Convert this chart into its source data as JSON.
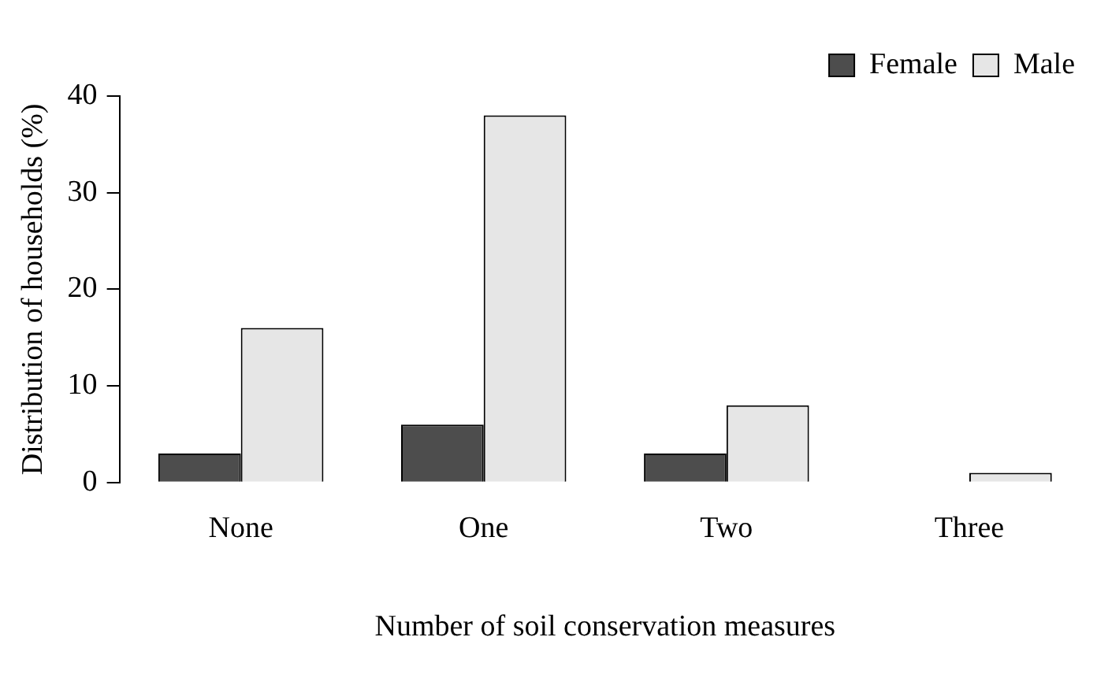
{
  "chart_data": {
    "type": "bar",
    "xlabel": "Number of soil conservation measures",
    "ylabel": "Distribution of households (%)",
    "categories": [
      "None",
      "One",
      "Two",
      "Three"
    ],
    "series": [
      {
        "name": "Female",
        "color": "#4d4d4d",
        "values": [
          3,
          6,
          3,
          0
        ]
      },
      {
        "name": "Male",
        "color": "#e6e6e6",
        "values": [
          16,
          38,
          8,
          1
        ]
      }
    ],
    "ylim": [
      0,
      40
    ],
    "yticks": [
      0,
      10,
      20,
      30,
      40
    ],
    "grid": false,
    "legend": "top right"
  }
}
